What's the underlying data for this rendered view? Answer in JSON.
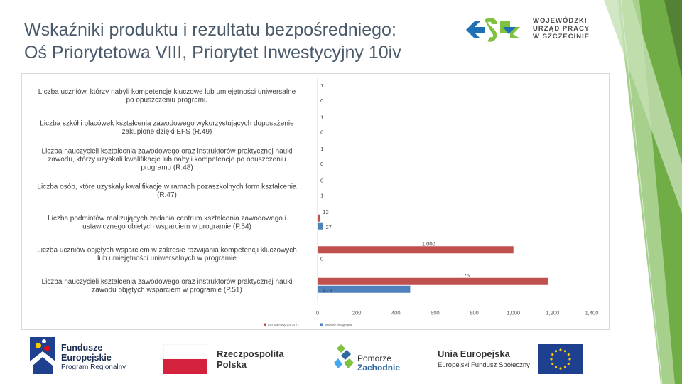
{
  "slide": {
    "title_line1": "Wskaźniki produktu i rezultatu bezpośredniego:",
    "title_line2": "Oś Priorytetowa VIII, Priorytet Inwestycyjny 10iv"
  },
  "logo_wup": {
    "lines": [
      "WOJEWÓDZKI",
      "URZĄD PRACY",
      "W SZCZECINIE"
    ],
    "icon": "wup-arrows-logo",
    "colors": [
      "#1f6fb5",
      "#7ec23f"
    ]
  },
  "footer": {
    "fundusze": {
      "line1": "Fundusze",
      "line2": "Europejskie",
      "line3": "Program Regionalny",
      "icon": "eu-funds-logo"
    },
    "rzeczpospolita": {
      "line1": "Rzeczpospolita",
      "line2": "Polska",
      "icon": "polish-flag"
    },
    "pomorze": {
      "line1": "Pomorze",
      "line2": "Zachodnie",
      "icon": "pomorze-logo"
    },
    "unia": {
      "line1": "Unia Europejska",
      "line2": "Europejski Fundusz Społeczny",
      "icon": "eu-flag"
    }
  },
  "chart_data": {
    "type": "bar",
    "orientation": "horizontal",
    "categories": [
      [
        "Liczba uczniów, którzy nabyli kompetencje kluczowe lub umiejętności uniwersalne",
        "po opuszczeniu programu"
      ],
      [
        "Liczba szkół i placówek kształcenia zawodowego wykorzystujących doposażenie",
        "zakupione dzięki EFS (R.49)"
      ],
      [
        "Liczba nauczycieli kształcenia zawodowego oraz instruktorów praktycznej nauki",
        "zawodu, którzy uzyskali kwalifikacje lub nabyli kompetencje po opuszczeniu",
        "programu (R.48)"
      ],
      [
        "Liczba osób, które uzyskały kwalifikacje w ramach pozaszkolnych form kształcenia",
        "(R.47)"
      ],
      [
        "Liczba podmiotów realizujących zadania centrum kształcenia zawodowego i",
        "ustawicznego objętych wsparciem w programie (P.54)"
      ],
      [
        "Liczba uczniów objętych wsparciem w zakresie rozwijania kompetencji kluczowych",
        "lub umiejętności uniwersalnych w programie"
      ],
      [
        "Liczba nauczycieli kształcenia zawodowego oraz instruktorów praktycznej nauki",
        "zawodu objętych wsparciem w programie (P.51)"
      ]
    ],
    "series": [
      {
        "name": "Cel końcowy (2023 r.)",
        "color": "#c0504d",
        "values": [
          1,
          1,
          1,
          0,
          12,
          1000,
          1175
        ],
        "labels": [
          "1",
          "1",
          "1",
          "0",
          "12",
          "1,000",
          "1,175"
        ]
      },
      {
        "name": "Wartość osiągnięta",
        "color": "#4f81bd",
        "values": [
          0,
          0,
          0,
          1,
          27,
          0,
          473
        ],
        "labels": [
          "0",
          "0",
          "0",
          "1",
          "27",
          "0",
          "473"
        ]
      }
    ],
    "xlim": [
      0,
      1400
    ],
    "xticks": [
      0,
      200,
      400,
      600,
      800,
      1000,
      1200,
      1400
    ],
    "xtick_labels": [
      "0",
      "200",
      "400",
      "600",
      "800",
      "1,000",
      "1,200",
      "1,400"
    ],
    "grid": false,
    "legend": "bottom-left"
  }
}
